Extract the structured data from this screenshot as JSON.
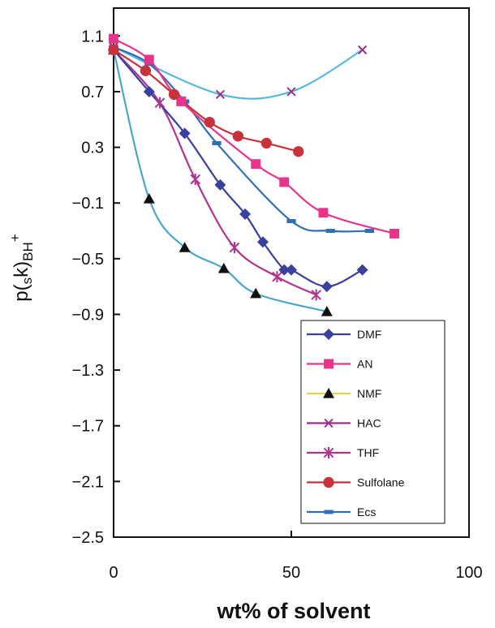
{
  "chart_data": {
    "type": "line",
    "xlabel": "wt% of solvent",
    "ylabel": {
      "main": "p(",
      "sub1": "s",
      "mid": "k)",
      "sub2": "BH",
      "sup": "+"
    },
    "xlim": [
      0,
      100
    ],
    "ylim": [
      -2.5,
      1.3
    ],
    "xticks": [
      0,
      50,
      100
    ],
    "yticks": [
      1.1,
      0.7,
      0.3,
      -0.1,
      -0.5,
      -0.9,
      -1.3,
      -1.7,
      -2.1,
      -2.5
    ],
    "ytick_labels": [
      "1.1",
      "0.7",
      "0.3",
      "−0.1",
      "−0.5",
      "−0.9",
      "−1.3",
      "−1.7",
      "−2.1",
      "−2.5"
    ],
    "grid": false,
    "legend_position": "bottom-right",
    "series": [
      {
        "name": "DMF",
        "color": "#3b3f9e",
        "marker": "diamond",
        "points": [
          [
            0,
            1.0
          ],
          [
            10,
            0.7
          ],
          [
            20,
            0.4
          ],
          [
            30,
            0.03
          ],
          [
            37,
            -0.18
          ],
          [
            42,
            -0.38
          ],
          [
            48,
            -0.58
          ],
          [
            50,
            -0.58
          ],
          [
            60,
            -0.7
          ],
          [
            70,
            -0.58
          ]
        ]
      },
      {
        "name": "AN",
        "color": "#e8358a",
        "marker": "square",
        "points": [
          [
            0,
            1.08
          ],
          [
            10,
            0.93
          ],
          [
            19,
            0.63
          ],
          [
            40,
            0.18
          ],
          [
            48,
            0.05
          ],
          [
            59,
            -0.17
          ],
          [
            79,
            -0.32
          ]
        ]
      },
      {
        "name": "NMF",
        "color": "#e8d24a",
        "marker": "triangle",
        "line_color": "#4aa6cc",
        "points": [
          [
            0,
            1.0
          ],
          [
            10,
            -0.07
          ],
          [
            20,
            -0.42
          ],
          [
            31,
            -0.57
          ],
          [
            40,
            -0.75
          ],
          [
            60,
            -0.88
          ]
        ]
      },
      {
        "name": "HAC",
        "color": "#9b2f8e",
        "marker": "x",
        "line_color": "#5ab8e0",
        "points": [
          [
            0,
            1.02
          ],
          [
            30,
            0.68
          ],
          [
            50,
            0.7
          ],
          [
            70,
            1.0
          ]
        ]
      },
      {
        "name": "THF",
        "color": "#b0338f",
        "marker": "asterisk",
        "points": [
          [
            0,
            1.0
          ],
          [
            13,
            0.62
          ],
          [
            23,
            0.07
          ],
          [
            34,
            -0.42
          ],
          [
            46,
            -0.63
          ],
          [
            57,
            -0.76
          ]
        ]
      },
      {
        "name": "Sulfolane",
        "color": "#c8323a",
        "marker": "circle",
        "points": [
          [
            0,
            1.0
          ],
          [
            9,
            0.85
          ],
          [
            17,
            0.68
          ],
          [
            27,
            0.48
          ],
          [
            35,
            0.38
          ],
          [
            43,
            0.33
          ],
          [
            52,
            0.27
          ]
        ]
      },
      {
        "name": "Ecs",
        "color": "#2f6fb8",
        "marker": "dash",
        "points": [
          [
            0,
            1.02
          ],
          [
            10,
            0.9
          ],
          [
            20,
            0.63
          ],
          [
            29,
            0.33
          ],
          [
            50,
            -0.23
          ],
          [
            61,
            -0.3
          ],
          [
            72,
            -0.3
          ]
        ]
      }
    ]
  }
}
